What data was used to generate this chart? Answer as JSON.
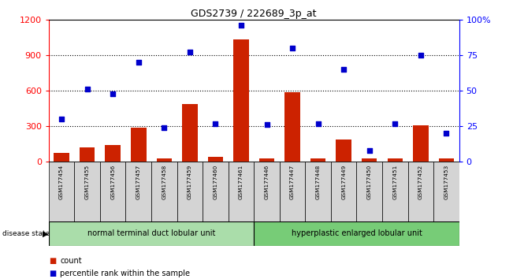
{
  "title": "GDS2739 / 222689_3p_at",
  "samples": [
    "GSM177454",
    "GSM177455",
    "GSM177456",
    "GSM177457",
    "GSM177458",
    "GSM177459",
    "GSM177460",
    "GSM177461",
    "GSM177446",
    "GSM177447",
    "GSM177448",
    "GSM177449",
    "GSM177450",
    "GSM177451",
    "GSM177452",
    "GSM177453"
  ],
  "counts": [
    75,
    120,
    140,
    290,
    30,
    490,
    40,
    1030,
    30,
    590,
    30,
    185,
    30,
    30,
    310,
    30
  ],
  "percentiles": [
    30,
    51,
    48,
    70,
    24,
    77,
    27,
    96,
    26,
    80,
    27,
    65,
    8,
    27,
    75,
    20
  ],
  "group1_label": "normal terminal duct lobular unit",
  "group2_label": "hyperplastic enlarged lobular unit",
  "group1_count": 8,
  "group2_count": 8,
  "bar_color": "#cc2200",
  "dot_color": "#0000cc",
  "ylim_left": [
    0,
    1200
  ],
  "ylim_right": [
    0,
    100
  ],
  "yticks_left": [
    0,
    300,
    600,
    900,
    1200
  ],
  "yticks_right": [
    0,
    25,
    50,
    75,
    100
  ],
  "legend_count_label": "count",
  "legend_pct_label": "percentile rank within the sample",
  "group1_color": "#aaddaa",
  "group2_color": "#77cc77",
  "sample_bg_color": "#d4d4d4",
  "disease_state_label": "disease state"
}
